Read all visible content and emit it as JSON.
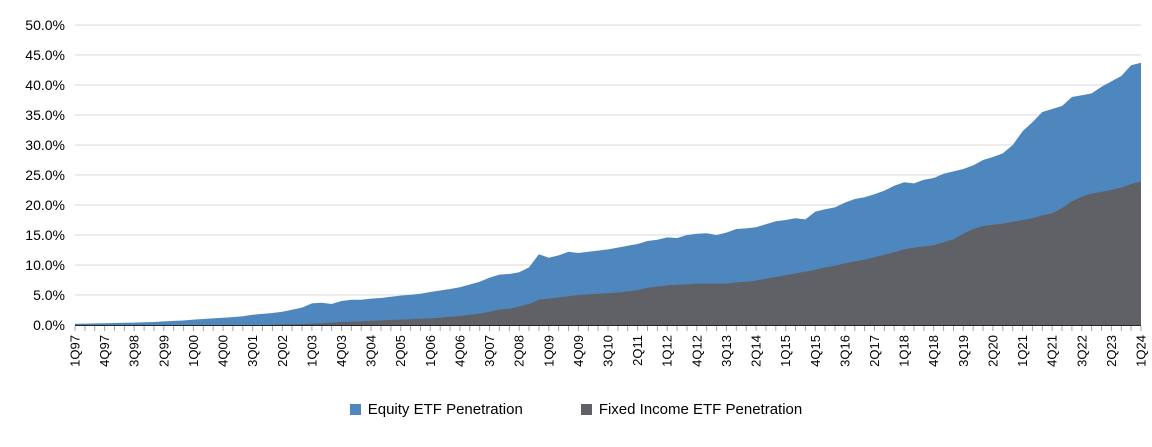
{
  "chart_data": {
    "type": "area",
    "mode": "overlapping",
    "background": "#FFFFFF",
    "y_axis": {
      "max": 50,
      "min": 0,
      "step": 5,
      "tick_labels": [
        "50.0%",
        "45.0%",
        "40.0%",
        "35.0%",
        "30.0%",
        "25.0%",
        "20.0%",
        "15.0%",
        "10.0%",
        "5.0%",
        "0.0%"
      ]
    },
    "x_axis": {
      "first_quarter": "1Q97",
      "last_quarter": "1Q24",
      "quarters_total": 109,
      "label_every_n_quarters": 3,
      "tick_labels": [
        "1Q97",
        "4Q97",
        "3Q98",
        "2Q99",
        "1Q00",
        "4Q00",
        "3Q01",
        "2Q02",
        "1Q03",
        "4Q03",
        "3Q04",
        "2Q05",
        "1Q06",
        "4Q06",
        "3Q07",
        "2Q08",
        "1Q09",
        "4Q09",
        "3Q10",
        "2Q11",
        "1Q12",
        "4Q12",
        "3Q13",
        "2Q14",
        "1Q15",
        "4Q15",
        "3Q16",
        "2Q17",
        "1Q18",
        "4Q18",
        "3Q19",
        "2Q20",
        "1Q21",
        "4Q21",
        "3Q22",
        "2Q23",
        "1Q24"
      ]
    },
    "gridlines": {
      "color": "#D9D9D9",
      "axis_line_color": "#262626",
      "tick_color": "#A6A6A6"
    },
    "legend": {
      "position": "bottom-center"
    },
    "series": [
      {
        "name": "Equity ETF Penetration",
        "color": "#4E87BD",
        "points": [
          [
            "1Q97",
            0.2
          ],
          [
            "4Q97",
            0.3
          ],
          [
            "3Q98",
            0.4
          ],
          [
            "1Q99",
            0.5
          ],
          [
            "2Q99",
            0.6
          ],
          [
            "4Q99",
            0.75
          ],
          [
            "1Q00",
            0.9
          ],
          [
            "3Q00",
            1.1
          ],
          [
            "4Q00",
            1.2
          ],
          [
            "2Q01",
            1.45
          ],
          [
            "3Q01",
            1.7
          ],
          [
            "1Q02",
            2.0
          ],
          [
            "2Q02",
            2.2
          ],
          [
            "4Q02",
            2.9
          ],
          [
            "1Q03",
            3.6
          ],
          [
            "2Q03",
            3.7
          ],
          [
            "3Q03",
            3.5
          ],
          [
            "4Q03",
            4.0
          ],
          [
            "1Q04",
            4.2
          ],
          [
            "2Q04",
            4.2
          ],
          [
            "3Q04",
            4.4
          ],
          [
            "4Q04",
            4.5
          ],
          [
            "2Q05",
            4.9
          ],
          [
            "4Q05",
            5.2
          ],
          [
            "1Q06",
            5.5
          ],
          [
            "3Q06",
            6.0
          ],
          [
            "4Q06",
            6.3
          ],
          [
            "2Q07",
            7.2
          ],
          [
            "3Q07",
            7.9
          ],
          [
            "4Q07",
            8.4
          ],
          [
            "1Q08",
            8.5
          ],
          [
            "2Q08",
            8.8
          ],
          [
            "3Q08",
            9.6
          ],
          [
            "4Q08",
            11.8
          ],
          [
            "1Q09",
            11.2
          ],
          [
            "2Q09",
            11.6
          ],
          [
            "3Q09",
            12.2
          ],
          [
            "4Q09",
            12.0
          ],
          [
            "1Q10",
            12.2
          ],
          [
            "2Q10",
            12.4
          ],
          [
            "3Q10",
            12.6
          ],
          [
            "4Q10",
            12.9
          ],
          [
            "1Q11",
            13.2
          ],
          [
            "2Q11",
            13.5
          ],
          [
            "3Q11",
            14.0
          ],
          [
            "4Q11",
            14.2
          ],
          [
            "1Q12",
            14.6
          ],
          [
            "2Q12",
            14.5
          ],
          [
            "3Q12",
            15.0
          ],
          [
            "4Q12",
            15.2
          ],
          [
            "1Q13",
            15.3
          ],
          [
            "2Q13",
            15.0
          ],
          [
            "3Q13",
            15.4
          ],
          [
            "4Q13",
            16.0
          ],
          [
            "1Q14",
            16.1
          ],
          [
            "2Q14",
            16.3
          ],
          [
            "3Q14",
            16.8
          ],
          [
            "4Q14",
            17.3
          ],
          [
            "1Q15",
            17.5
          ],
          [
            "2Q15",
            17.8
          ],
          [
            "3Q15",
            17.6
          ],
          [
            "4Q15",
            18.9
          ],
          [
            "1Q16",
            19.3
          ],
          [
            "2Q16",
            19.6
          ],
          [
            "3Q16",
            20.4
          ],
          [
            "4Q16",
            21.0
          ],
          [
            "1Q17",
            21.3
          ],
          [
            "2Q17",
            21.8
          ],
          [
            "3Q17",
            22.4
          ],
          [
            "4Q17",
            23.2
          ],
          [
            "1Q18",
            23.8
          ],
          [
            "2Q18",
            23.6
          ],
          [
            "3Q18",
            24.2
          ],
          [
            "4Q18",
            24.5
          ],
          [
            "1Q19",
            25.2
          ],
          [
            "2Q19",
            25.6
          ],
          [
            "3Q19",
            26.0
          ],
          [
            "4Q19",
            26.6
          ],
          [
            "1Q20",
            27.5
          ],
          [
            "2Q20",
            28.0
          ],
          [
            "3Q20",
            28.6
          ],
          [
            "4Q20",
            30.0
          ],
          [
            "1Q21",
            32.3
          ],
          [
            "2Q21",
            33.8
          ],
          [
            "3Q21",
            35.5
          ],
          [
            "4Q21",
            36.0
          ],
          [
            "1Q22",
            36.5
          ],
          [
            "2Q22",
            38.0
          ],
          [
            "3Q22",
            38.3
          ],
          [
            "4Q22",
            38.6
          ],
          [
            "1Q23",
            39.7
          ],
          [
            "2Q23",
            40.6
          ],
          [
            "3Q23",
            41.5
          ],
          [
            "4Q23",
            43.3
          ],
          [
            "1Q24",
            43.7
          ]
        ]
      },
      {
        "name": "Fixed Income ETF Penetration",
        "color": "#5F6166",
        "points": [
          [
            "1Q97",
            0.0
          ],
          [
            "4Q01",
            0.0
          ],
          [
            "1Q02",
            0.05
          ],
          [
            "2Q02",
            0.1
          ],
          [
            "4Q02",
            0.15
          ],
          [
            "2Q03",
            0.3
          ],
          [
            "4Q03",
            0.5
          ],
          [
            "2Q04",
            0.6
          ],
          [
            "3Q04",
            0.7
          ],
          [
            "2Q05",
            0.9
          ],
          [
            "1Q06",
            1.1
          ],
          [
            "4Q06",
            1.5
          ],
          [
            "2Q07",
            1.9
          ],
          [
            "3Q07",
            2.2
          ],
          [
            "4Q07",
            2.6
          ],
          [
            "1Q08",
            2.7
          ],
          [
            "2Q08",
            3.1
          ],
          [
            "3Q08",
            3.5
          ],
          [
            "4Q08",
            4.2
          ],
          [
            "1Q09",
            4.4
          ],
          [
            "2Q09",
            4.6
          ],
          [
            "3Q09",
            4.8
          ],
          [
            "4Q09",
            5.0
          ],
          [
            "1Q10",
            5.1
          ],
          [
            "3Q10",
            5.3
          ],
          [
            "4Q10",
            5.4
          ],
          [
            "2Q11",
            5.8
          ],
          [
            "3Q11",
            6.2
          ],
          [
            "4Q11",
            6.4
          ],
          [
            "1Q12",
            6.6
          ],
          [
            "2Q12",
            6.7
          ],
          [
            "4Q12",
            6.9
          ],
          [
            "2Q13",
            6.9
          ],
          [
            "3Q13",
            6.9
          ],
          [
            "4Q13",
            7.1
          ],
          [
            "1Q14",
            7.2
          ],
          [
            "2Q14",
            7.4
          ],
          [
            "3Q14",
            7.7
          ],
          [
            "4Q14",
            8.0
          ],
          [
            "1Q15",
            8.3
          ],
          [
            "2Q15",
            8.6
          ],
          [
            "3Q15",
            8.9
          ],
          [
            "4Q15",
            9.2
          ],
          [
            "1Q16",
            9.6
          ],
          [
            "2Q16",
            9.9
          ],
          [
            "3Q16",
            10.3
          ],
          [
            "4Q16",
            10.6
          ],
          [
            "1Q17",
            10.9
          ],
          [
            "2Q17",
            11.3
          ],
          [
            "3Q17",
            11.7
          ],
          [
            "4Q17",
            12.1
          ],
          [
            "1Q18",
            12.6
          ],
          [
            "2Q18",
            12.9
          ],
          [
            "3Q18",
            13.1
          ],
          [
            "4Q18",
            13.3
          ],
          [
            "1Q19",
            13.8
          ],
          [
            "2Q19",
            14.3
          ],
          [
            "3Q19",
            15.2
          ],
          [
            "4Q19",
            16.0
          ],
          [
            "1Q20",
            16.5
          ],
          [
            "2Q20",
            16.7
          ],
          [
            "3Q20",
            16.9
          ],
          [
            "4Q20",
            17.2
          ],
          [
            "1Q21",
            17.5
          ],
          [
            "2Q21",
            17.8
          ],
          [
            "3Q21",
            18.3
          ],
          [
            "4Q21",
            18.6
          ],
          [
            "1Q22",
            19.5
          ],
          [
            "2Q22",
            20.6
          ],
          [
            "3Q22",
            21.4
          ],
          [
            "4Q22",
            21.9
          ],
          [
            "1Q23",
            22.2
          ],
          [
            "2Q23",
            22.5
          ],
          [
            "3Q23",
            22.9
          ],
          [
            "4Q23",
            23.5
          ],
          [
            "1Q24",
            23.9
          ]
        ]
      }
    ]
  }
}
